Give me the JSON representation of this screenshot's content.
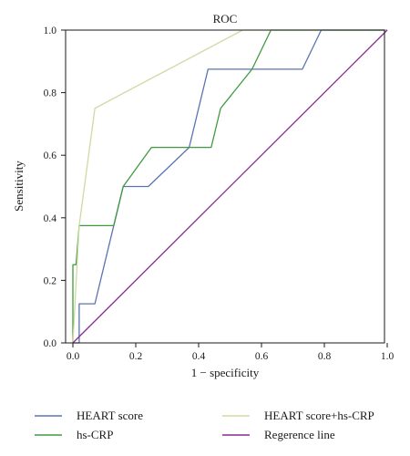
{
  "chart_data": {
    "type": "line",
    "title": "ROC",
    "xlabel": "1 − specificity",
    "ylabel": "Sensitivity",
    "xlim": [
      0,
      1
    ],
    "ylim": [
      0,
      1
    ],
    "x_ticks": [
      "0.0",
      "0.2",
      "0.4",
      "0.6",
      "0.8",
      "1.0"
    ],
    "y_ticks": [
      "0.0",
      "0.2",
      "0.4",
      "0.6",
      "0.8",
      "1.0"
    ],
    "grid": false,
    "legend_position": "bottom",
    "series": [
      {
        "name": "HEART score",
        "color": "#5b73b5",
        "points": [
          [
            0,
            0
          ],
          [
            0.02,
            0
          ],
          [
            0.02,
            0.125
          ],
          [
            0.07,
            0.125
          ],
          [
            0.16,
            0.5
          ],
          [
            0.24,
            0.5
          ],
          [
            0.37,
            0.625
          ],
          [
            0.43,
            0.875
          ],
          [
            0.73,
            0.875
          ],
          [
            0.79,
            1.0
          ],
          [
            1.0,
            1.0
          ]
        ]
      },
      {
        "name": "hs-CRP",
        "color": "#3f9a3f",
        "points": [
          [
            0,
            0
          ],
          [
            0,
            0.25
          ],
          [
            0.01,
            0.25
          ],
          [
            0.02,
            0.375
          ],
          [
            0.13,
            0.375
          ],
          [
            0.16,
            0.5
          ],
          [
            0.25,
            0.625
          ],
          [
            0.44,
            0.625
          ],
          [
            0.47,
            0.75
          ],
          [
            0.57,
            0.875
          ],
          [
            0.63,
            1.0
          ],
          [
            1.0,
            1.0
          ]
        ]
      },
      {
        "name": "HEART score+hs-CRP",
        "color": "#cddba2",
        "points": [
          [
            0,
            0
          ],
          [
            0.02,
            0.375
          ],
          [
            0.07,
            0.75
          ],
          [
            0.54,
            1.0
          ],
          [
            1.0,
            1.0
          ]
        ]
      },
      {
        "name": "Regerence line",
        "color": "#8b2a8f",
        "points": [
          [
            0,
            0
          ],
          [
            1,
            1
          ]
        ]
      }
    ]
  }
}
